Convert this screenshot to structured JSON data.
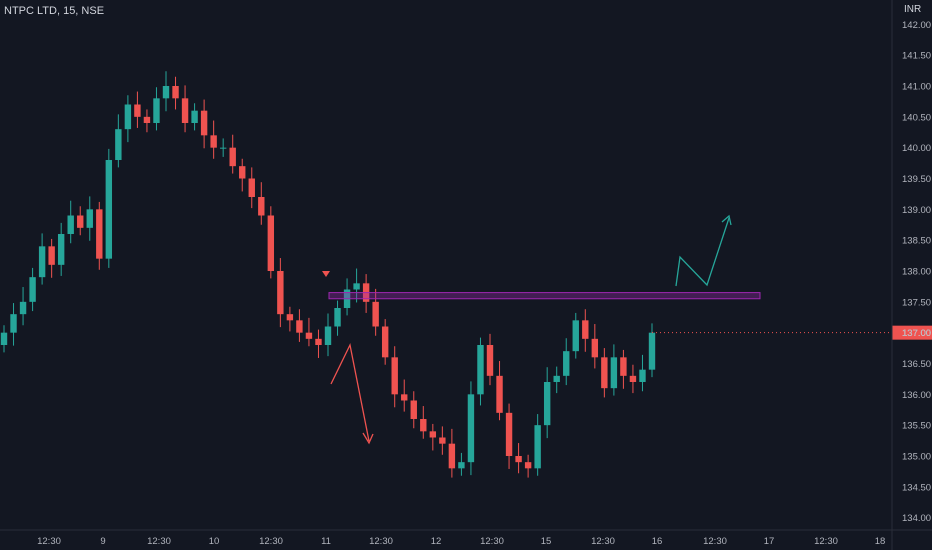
{
  "header": {
    "symbol": "NTPC LTD, 15, NSE"
  },
  "currency": "INR",
  "colors": {
    "up": "#26a69a",
    "down": "#ef5350",
    "bg": "#131722",
    "grid": "#1e222d",
    "zone": "#9c27b0",
    "bear_arrow": "#ef5350",
    "bull_arrow": "#26a69a"
  },
  "chart_data": {
    "type": "candlestick",
    "title": "NTPC LTD, 15, NSE",
    "currency": "INR",
    "ylim": [
      133.8,
      142.2
    ],
    "yticks": [
      "142.00",
      "141.50",
      "141.00",
      "140.50",
      "140.00",
      "139.50",
      "139.00",
      "138.50",
      "138.00",
      "137.50",
      "137.00",
      "136.50",
      "136.00",
      "135.50",
      "135.00",
      "134.50",
      "134.00"
    ],
    "xticks": [
      "12:30",
      "9",
      "12:30",
      "10",
      "12:30",
      "11",
      "12:30",
      "12",
      "12:30",
      "15",
      "12:30",
      "16",
      "12:30",
      "17",
      "12:30",
      "18"
    ],
    "last_price": "137.00",
    "resistance_zone": [
      137.55,
      137.65
    ],
    "grid": false,
    "close_series": [
      137.0,
      137.3,
      137.5,
      137.9,
      138.4,
      138.1,
      138.6,
      138.9,
      138.7,
      139.0,
      138.2,
      139.8,
      140.3,
      140.7,
      140.5,
      140.4,
      140.8,
      141.0,
      140.8,
      140.4,
      140.6,
      140.2,
      140.0,
      140.0,
      139.7,
      139.5,
      139.2,
      138.9,
      138.0,
      137.3,
      137.2,
      137.0,
      136.9,
      136.8,
      137.1,
      137.4,
      137.7,
      137.8,
      137.5,
      137.1,
      136.6,
      136.0,
      135.9,
      135.6,
      135.4,
      135.3,
      135.2,
      134.8,
      134.9,
      136.0,
      136.8,
      136.3,
      135.7,
      135.0,
      134.9,
      134.8,
      135.5,
      136.2,
      136.3,
      136.7,
      137.2,
      136.9,
      136.6,
      136.1,
      136.6,
      136.3,
      136.2,
      136.4,
      137.0
    ]
  }
}
